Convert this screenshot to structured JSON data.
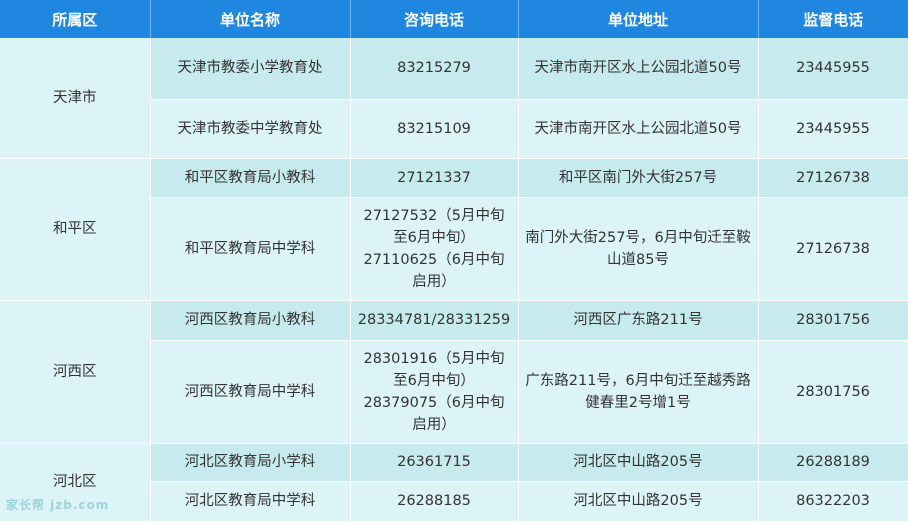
{
  "headers": [
    "所属区",
    "单位名称",
    "咨询电话",
    "单位地址",
    "监督电话"
  ],
  "groups": [
    {
      "district": "天津市",
      "rows": [
        {
          "name": "天津市教委小学教育处",
          "phone": "83215279",
          "address": "天津市南开区水上公园北道50号",
          "supervise": "23445955"
        },
        {
          "name": "天津市教委中学教育处",
          "phone": "83215109",
          "address": "天津市南开区水上公园北道50号",
          "supervise": "23445955"
        }
      ]
    },
    {
      "district": "和平区",
      "rows": [
        {
          "name": "和平区教育局小教科",
          "phone": "27121337",
          "address": "和平区南门外大街257号",
          "supervise": "27126738"
        },
        {
          "name": "和平区教育局中学科",
          "phone": "27127532（5月中旬至6月中旬）27110625（6月中旬启用）",
          "address": "南门外大街257号，6月中旬迁至鞍山道85号",
          "supervise": "27126738"
        }
      ]
    },
    {
      "district": "河西区",
      "rows": [
        {
          "name": "河西区教育局小教科",
          "phone": "28334781/28331259",
          "address": "河西区广东路211号",
          "supervise": "28301756"
        },
        {
          "name": "河西区教育局中学科",
          "phone": "28301916（5月中旬至6月中旬）28379075（6月中旬启用）",
          "address": "广东路211号，6月中旬迁至越秀路健春里2号增1号",
          "supervise": "28301756"
        }
      ]
    },
    {
      "district": "河北区",
      "rows": [
        {
          "name": "河北区教育局小学科",
          "phone": "26361715",
          "address": "河北区中山路205号",
          "supervise": "26288189"
        },
        {
          "name": "河北区教育局中学科",
          "phone": "26288185",
          "address": "河北区中山路205号",
          "supervise": "86322203"
        }
      ]
    }
  ],
  "watermark": "家长帮 jzb.com"
}
